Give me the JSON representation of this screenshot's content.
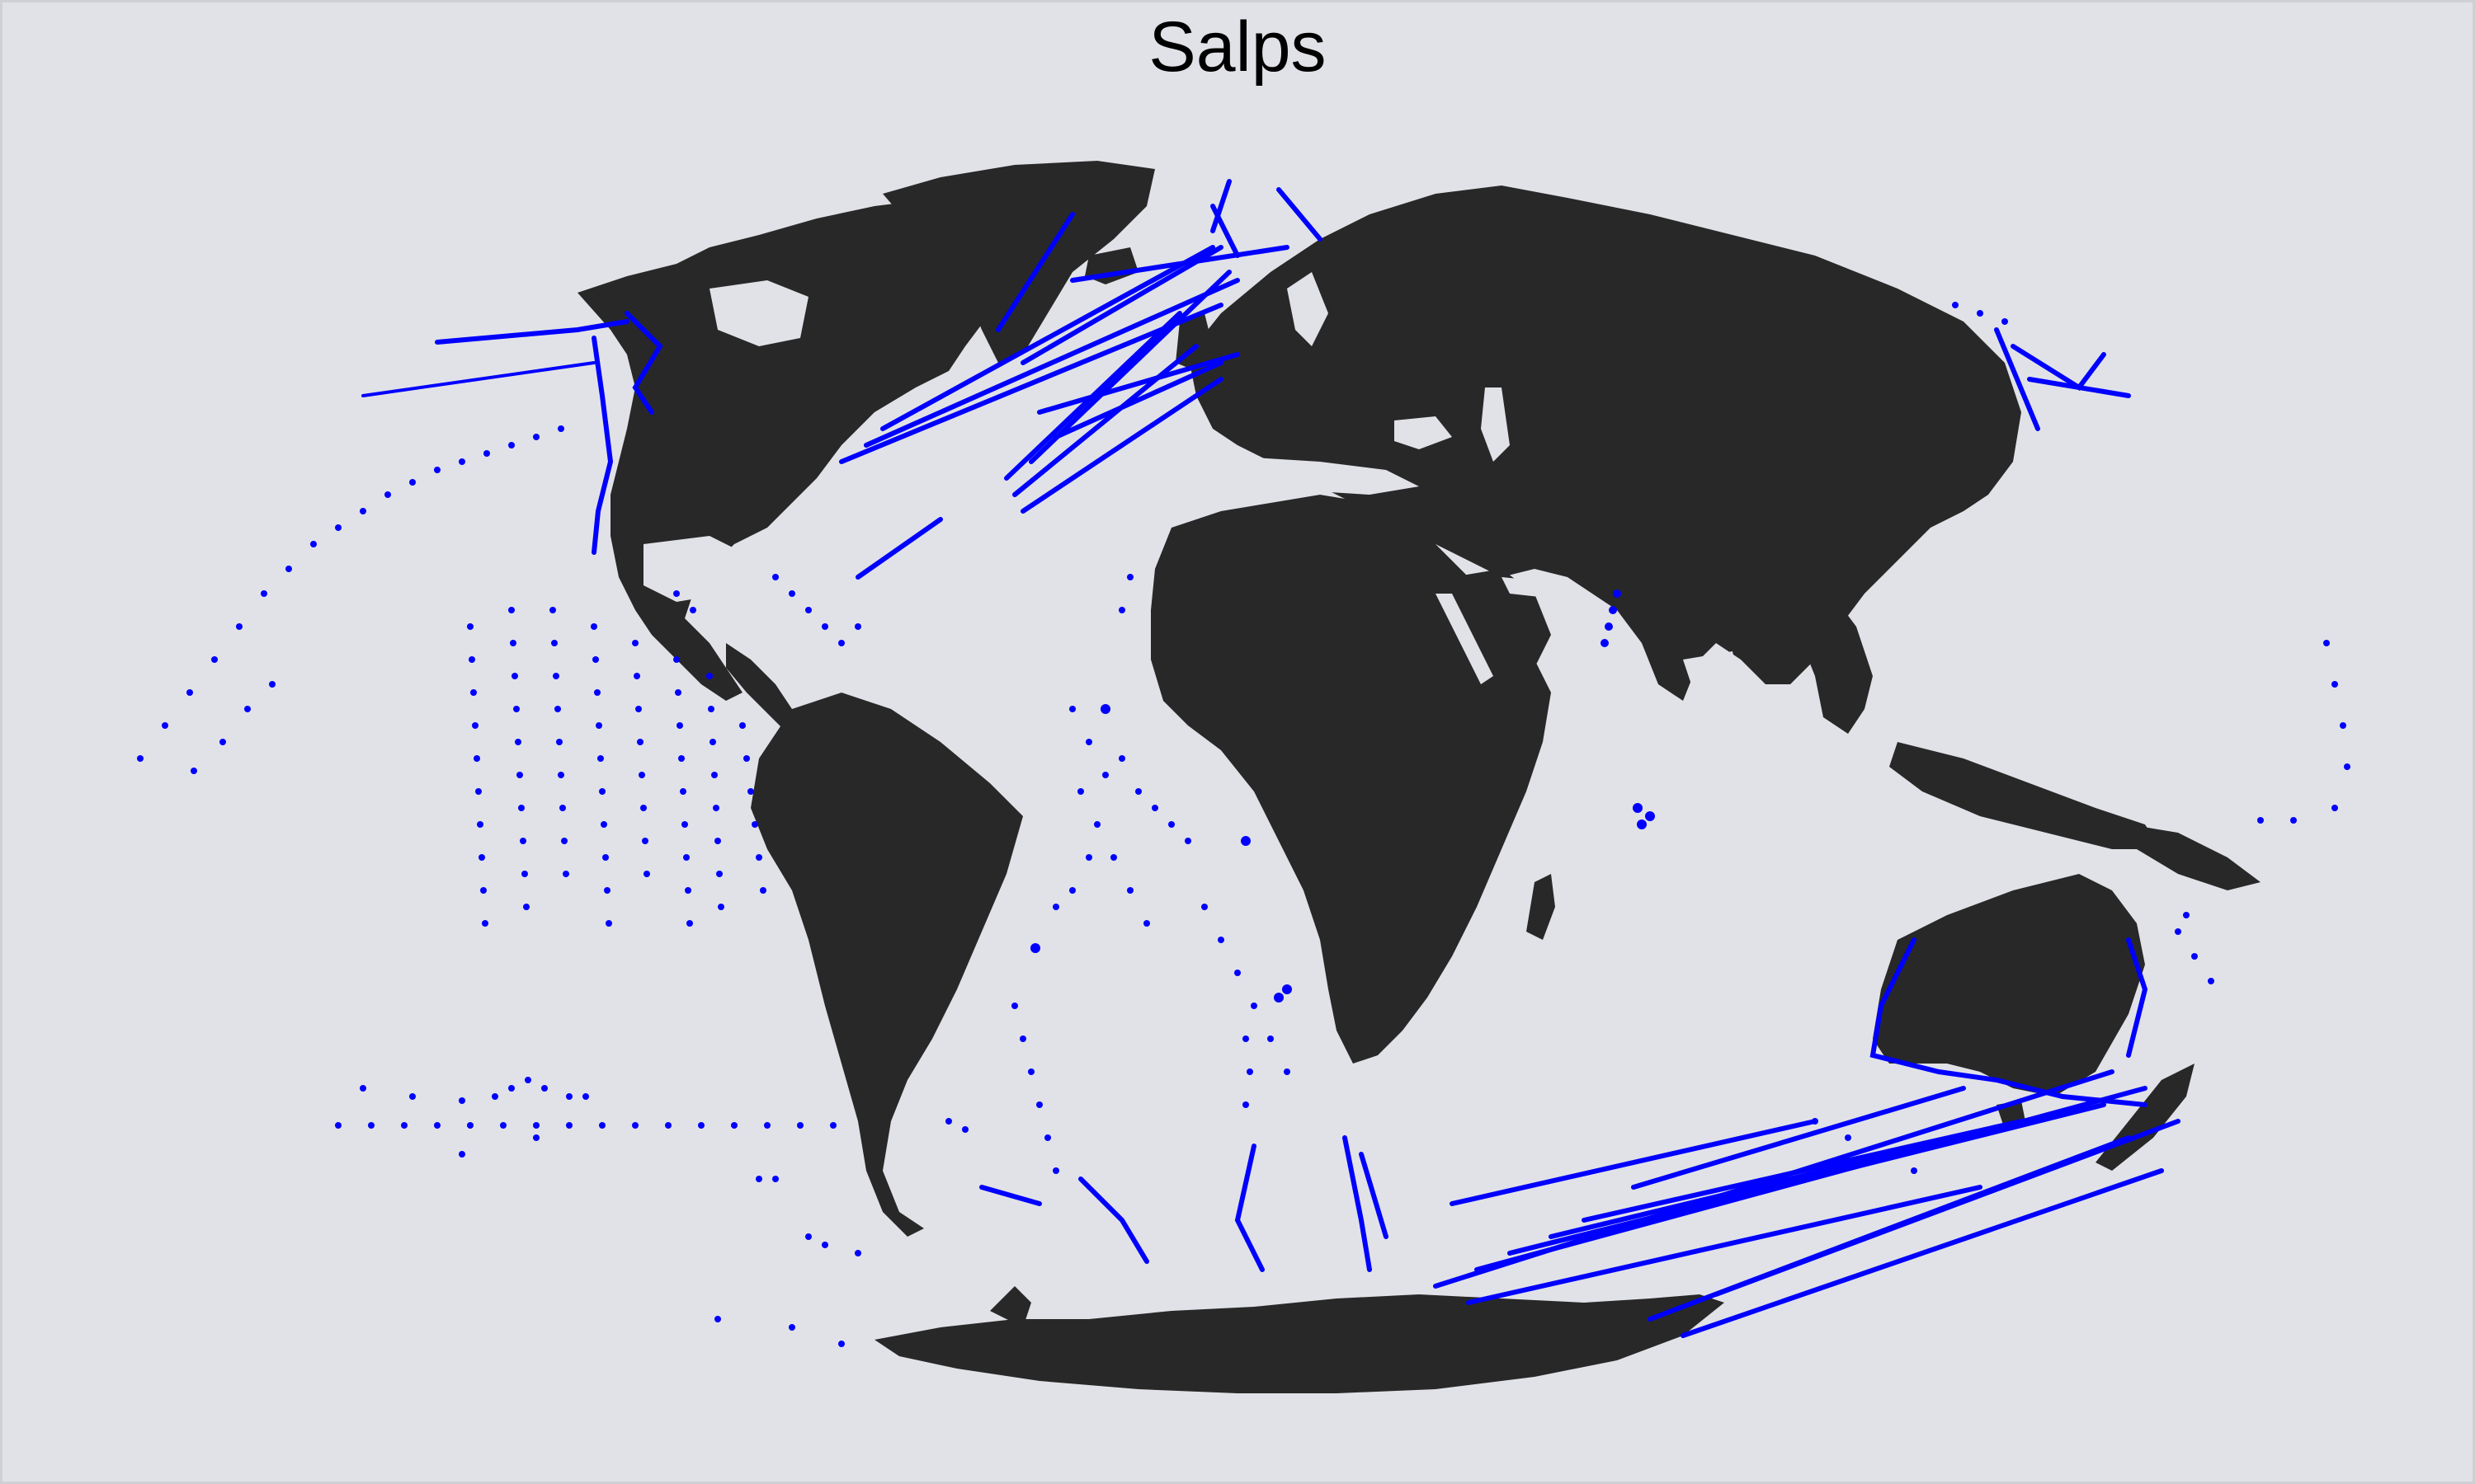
{
  "title": "Salps",
  "colors": {
    "background": "#e1e2e7",
    "land": "#282828",
    "points": "#0000ff"
  }
}
